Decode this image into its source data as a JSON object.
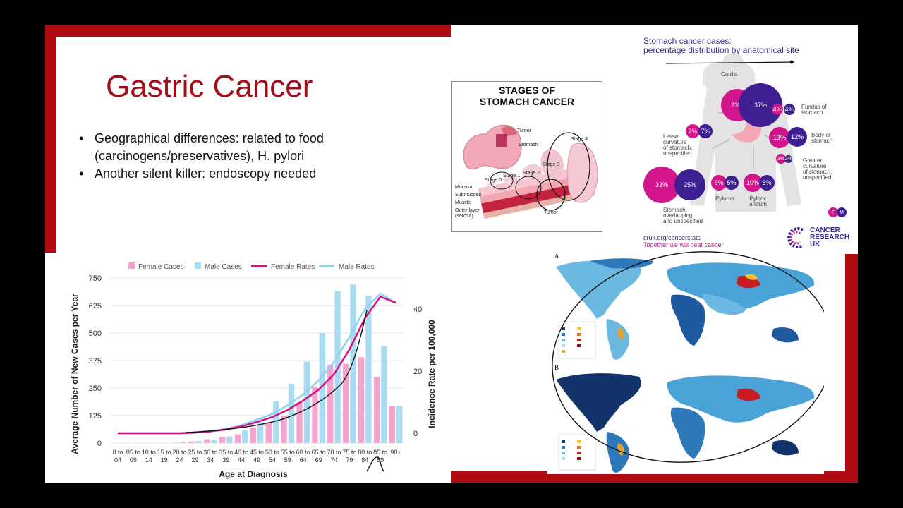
{
  "slide": {
    "title": "Gastric Cancer",
    "bullets": [
      "Geographical differences: related to food (carcinogens/preservatives), H. pylori",
      "Another silent killer: endoscopy needed"
    ]
  },
  "stages_figure": {
    "title_line1": "STAGES OF",
    "title_line2": "STOMACH CANCER",
    "labels": {
      "tumor_top": "Tumor",
      "stomach": "Stomach",
      "stage0": "Stage 0",
      "stage1": "Stage 1",
      "stage2": "Stage 2",
      "stage3": "Stage 3",
      "stage4": "Stage 4",
      "mucosa": "Mucosa",
      "submucosa": "Submucosa",
      "muscle": "Muscle",
      "outer_layer": "Outer layer",
      "serosa": "(serosa)",
      "tumor_bottom": "Tumor"
    }
  },
  "infographic": {
    "title_line1": "Stomach cancer cases:",
    "title_line2": "percentage distribution by anatomical site",
    "sites": {
      "cardia": {
        "name": "Cardia",
        "f": "23%",
        "m": "37%"
      },
      "fundus": {
        "name1": "Fundus of",
        "name2": "stomach",
        "f": "4%",
        "m": "4%"
      },
      "lesser": {
        "name1": "Lesser",
        "name2": "curvature",
        "name3": "of stomach,",
        "name4": "unspecified",
        "f": "7%",
        "m": "7%"
      },
      "body": {
        "name1": "Body of",
        "name2": "stomach",
        "f": "13%",
        "m": "12%"
      },
      "greater": {
        "name1": "Greater",
        "name2": "curvature",
        "name3": "of stomach,",
        "name4": "unspecified",
        "f": "3%",
        "m": "2%"
      },
      "overlapping": {
        "name1": "Stomach,",
        "name2": "overlapping",
        "name3": "and unspecified",
        "f": "33%",
        "m": "25%"
      },
      "pylorus": {
        "name": "Pylorus",
        "f": "6%",
        "m": "5%"
      },
      "antrum": {
        "name1": "Pyloric",
        "name2": "antrum",
        "f": "10%",
        "m": "8%"
      }
    },
    "legend": {
      "f": "F",
      "m": "M"
    },
    "link": "cruk.org/cancerstats",
    "tagline": "Together we will beat cancer",
    "logo_line1": "CANCER",
    "logo_line2": "RESEARCH",
    "logo_line3": "UK"
  },
  "maps": {
    "label_a": "A",
    "label_b": "B"
  },
  "colors": {
    "brand_red": "#b10b12",
    "title_red": "#a30d18",
    "female": "#f4a3cf",
    "male": "#a9dcf2",
    "female_rate": "#d4127f",
    "male_rate": "#8fd3ef",
    "cruk_purple": "#3d2b8c",
    "cruk_pink": "#d2158c"
  },
  "chart_data": {
    "type": "bar",
    "title": "",
    "xlabel": "Age at Diagnosis",
    "ylabel": "Average Number of New Cases per Year",
    "y2label": "Incidence Rate per 100,000",
    "ylim": [
      0,
      750
    ],
    "y2lim": [
      0,
      40
    ],
    "yticks": [
      "0",
      "125",
      "250",
      "375",
      "500",
      "625",
      "750"
    ],
    "y2ticks": [
      "0",
      "20",
      "40"
    ],
    "legend_position": "top",
    "categories": [
      "0 to 04",
      "05 to 09",
      "10 to 14",
      "15 to 19",
      "20 to 24",
      "25 to 29",
      "30 to 34",
      "35 to 39",
      "40 to 44",
      "45 to 49",
      "50 to 54",
      "55 to 59",
      "60 to 64",
      "65 to 69",
      "70 to 74",
      "75 to 79",
      "80 to 84",
      "85 to 89",
      "90+"
    ],
    "category_lines": [
      [
        "0 to",
        "04"
      ],
      [
        "05 to",
        "09"
      ],
      [
        "10 to",
        "14"
      ],
      [
        "15 to",
        "19"
      ],
      [
        "20 to",
        "24"
      ],
      [
        "25 to",
        "29"
      ],
      [
        "30 to",
        "34"
      ],
      [
        "35 to",
        "39"
      ],
      [
        "40 to",
        "44"
      ],
      [
        "45 to",
        "49"
      ],
      [
        "50 to",
        "54"
      ],
      [
        "55 to",
        "59"
      ],
      [
        "60 to",
        "64"
      ],
      [
        "65 to",
        "69"
      ],
      [
        "70 to",
        "74"
      ],
      [
        "75 to",
        "79"
      ],
      [
        "80 to",
        "84"
      ],
      [
        "85 to",
        "89"
      ],
      [
        "90+",
        ""
      ]
    ],
    "series": [
      {
        "name": "Female Cases",
        "kind": "bar",
        "axis": "left",
        "values": [
          0,
          0,
          0,
          0,
          2,
          7,
          18,
          28,
          40,
          72,
          95,
          125,
          185,
          255,
          355,
          360,
          390,
          300,
          170
        ]
      },
      {
        "name": "Male Cases",
        "kind": "bar",
        "axis": "left",
        "values": [
          0,
          0,
          0,
          0,
          3,
          10,
          16,
          30,
          60,
          95,
          190,
          270,
          370,
          500,
          690,
          720,
          670,
          440,
          170
        ]
      },
      {
        "name": "Female Rates",
        "kind": "line",
        "axis": "right",
        "values": [
          0,
          0,
          0,
          0,
          0,
          0.2,
          0.6,
          1.2,
          2.2,
          3.6,
          5.2,
          7.5,
          10.5,
          14,
          19,
          27,
          37,
          44,
          42
        ]
      },
      {
        "name": "Male Rates",
        "kind": "line",
        "axis": "right",
        "values": [
          0,
          0,
          0,
          0,
          0,
          0.2,
          0.7,
          1.4,
          2.6,
          4.3,
          6.2,
          9,
          12.5,
          17,
          23,
          31,
          40,
          45,
          42
        ]
      }
    ]
  }
}
